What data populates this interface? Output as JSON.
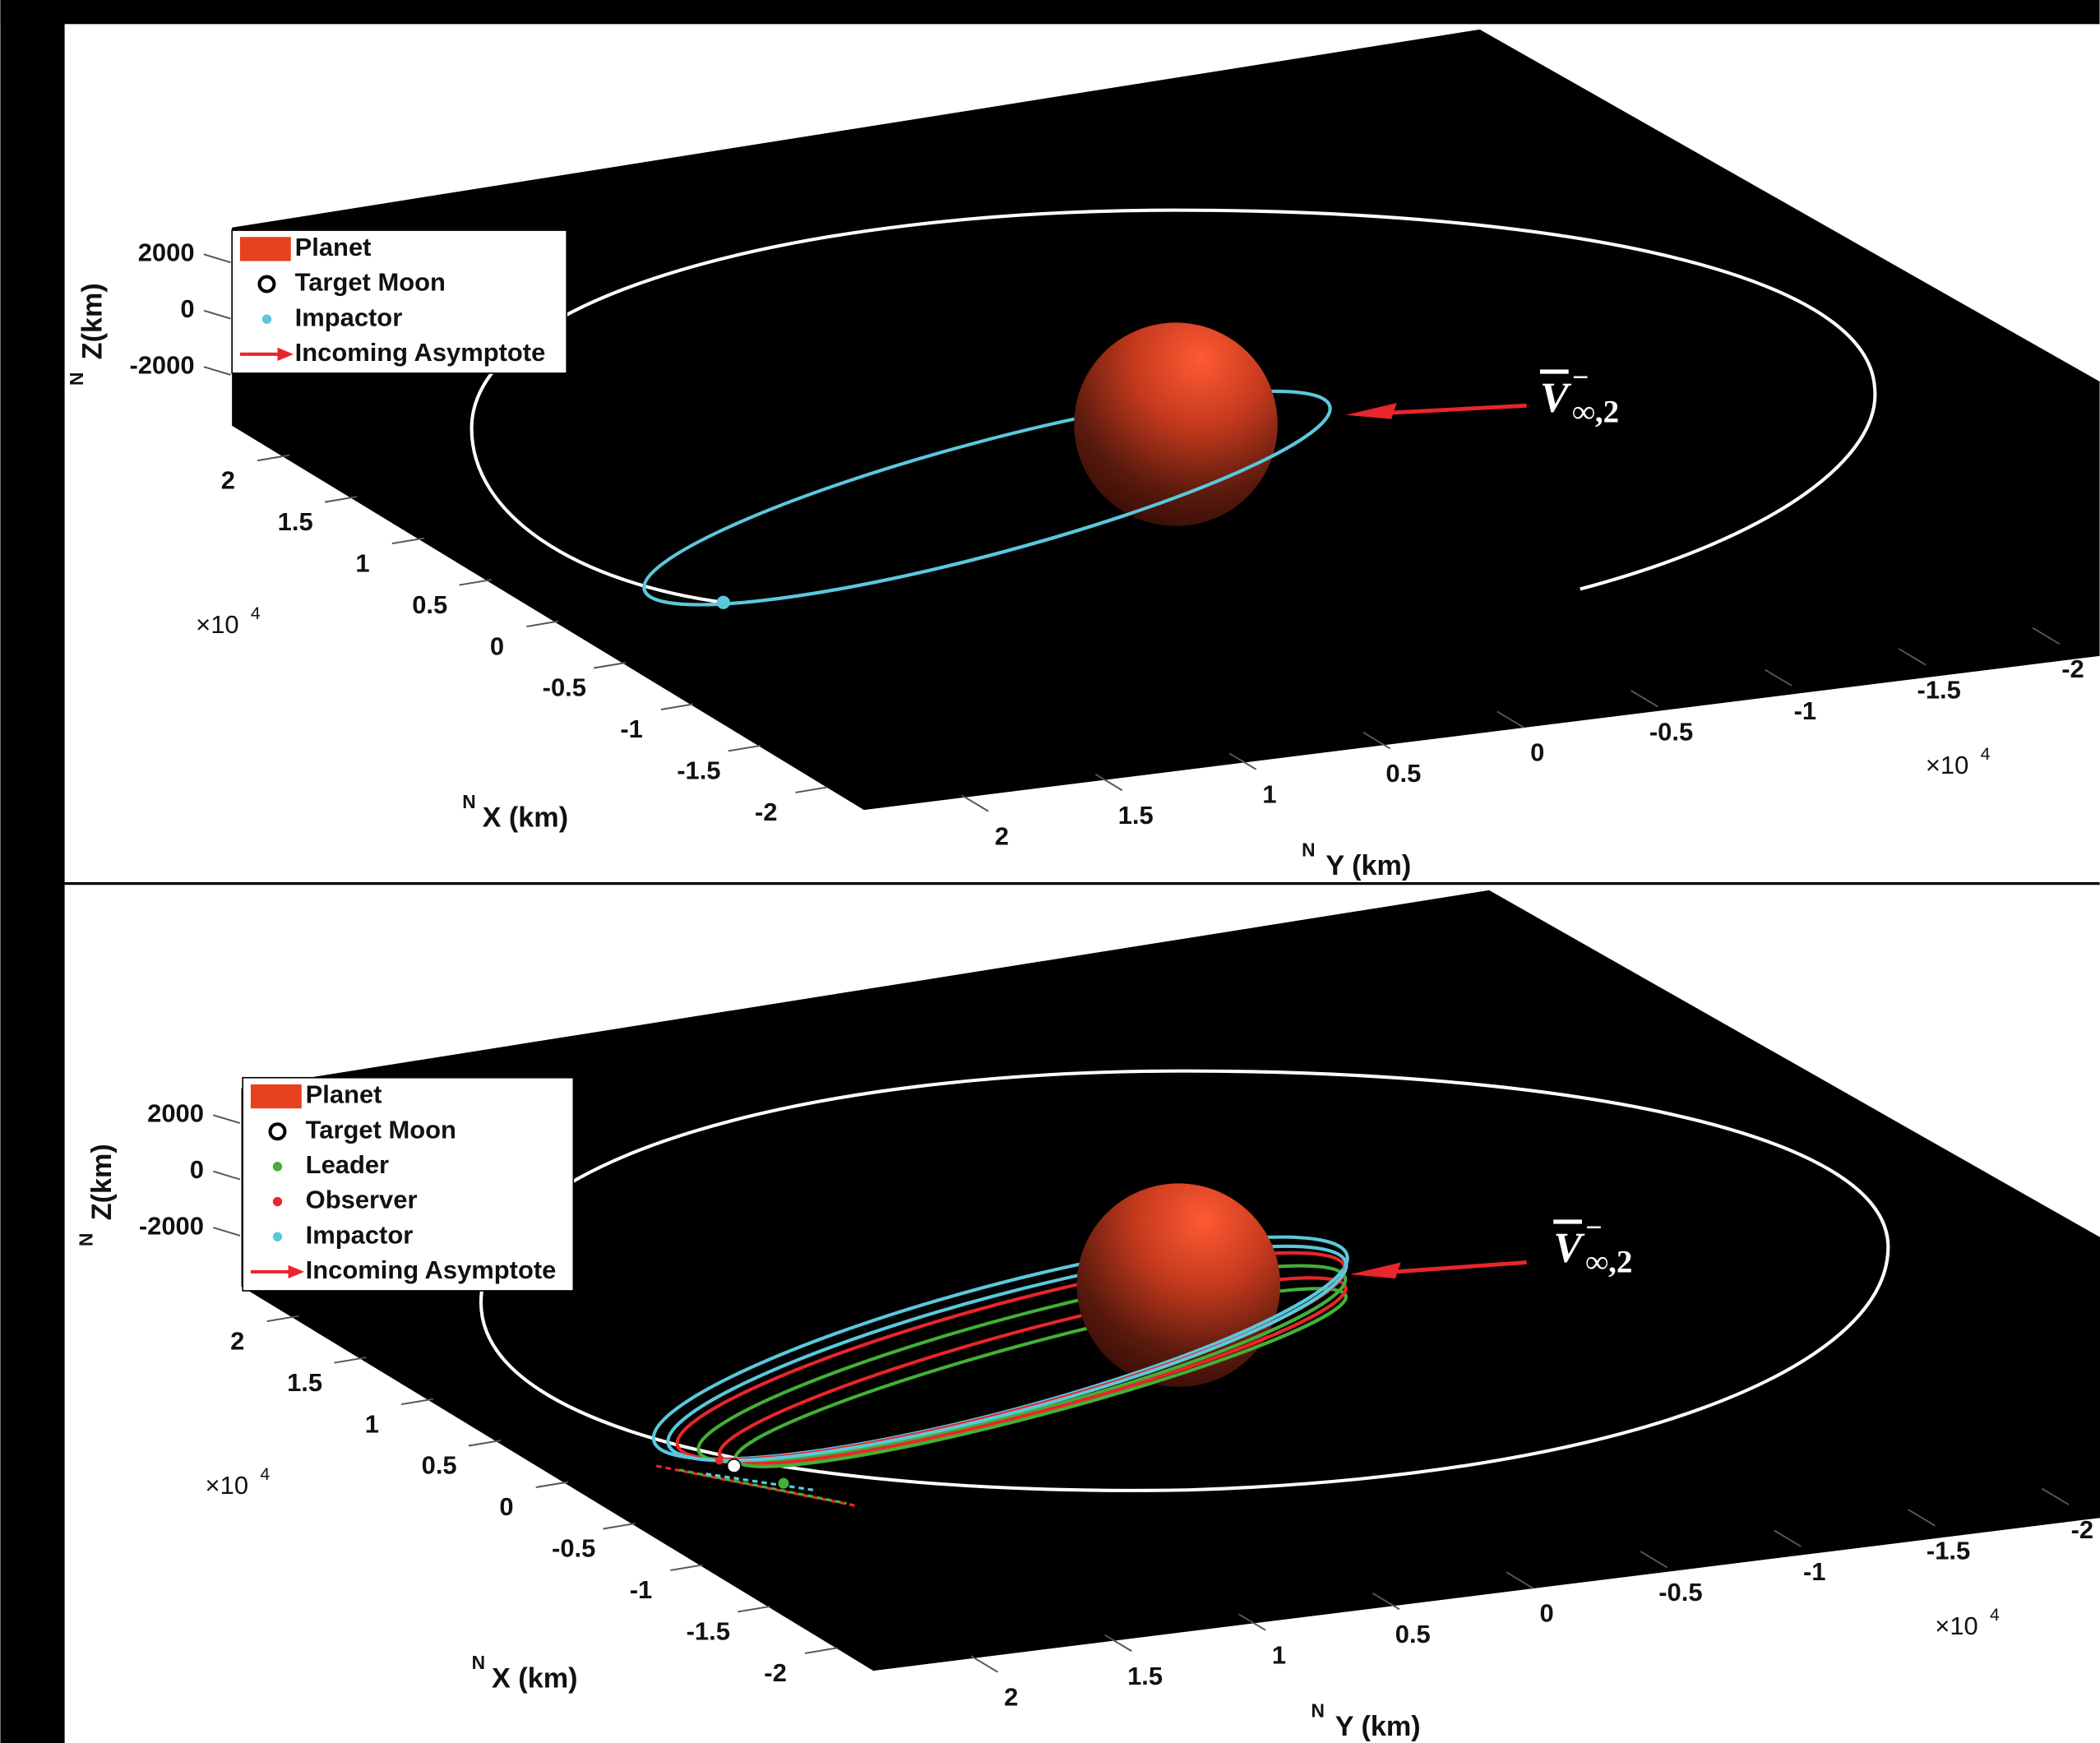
{
  "chart_data": [
    {
      "type": "plot3d",
      "xlabel": "X (km)",
      "xlabel_prefix": "N",
      "ylabel": "Y (km)",
      "ylabel_prefix": "N",
      "zlabel": "Z(km)",
      "zlabel_prefix": "N",
      "xlim": [
        -2.2,
        2.2
      ],
      "xticks": [
        2,
        1.5,
        1,
        0.5,
        0,
        -0.5,
        -1,
        -1.5,
        -2
      ],
      "ylim": [
        -2.2,
        2.2
      ],
      "yticks": [
        2,
        1.5,
        1,
        0.5,
        0,
        -0.5,
        -1,
        -1.5,
        -2
      ],
      "zlim": [
        -2500,
        2500
      ],
      "zticks": [
        2000,
        0,
        -2000
      ],
      "x_multiplier": {
        "label": "×10",
        "exponent": 4
      },
      "y_multiplier": {
        "label": "×10",
        "exponent": 4
      },
      "series": [
        {
          "name": "Planet",
          "color": "#e8411f",
          "marker": "patch"
        },
        {
          "name": "Target Moon",
          "color": "#ffffff",
          "marker": "circle"
        },
        {
          "name": "Impactor",
          "color": "#5bc8dc",
          "marker": "dot"
        },
        {
          "name": "Incoming Asymptote",
          "color": "#e8262b",
          "marker": "arrow"
        }
      ],
      "annotation": {
        "text": "V",
        "sup": "−",
        "sub": "∞,2"
      }
    },
    {
      "type": "plot3d",
      "xlabel": "X (km)",
      "xlabel_prefix": "N",
      "ylabel": "Y (km)",
      "ylabel_prefix": "N",
      "zlabel": "Z(km)",
      "zlabel_prefix": "N",
      "xlim": [
        -2.2,
        2.2
      ],
      "xticks": [
        2,
        1.5,
        1,
        0.5,
        0,
        -0.5,
        -1,
        -1.5,
        -2
      ],
      "ylim": [
        -2.2,
        2.2
      ],
      "yticks": [
        2,
        1.5,
        1,
        0.5,
        0,
        -0.5,
        -1,
        -1.5,
        -2
      ],
      "zlim": [
        -2500,
        2500
      ],
      "zticks": [
        2000,
        0,
        -2000
      ],
      "x_multiplier": {
        "label": "×10",
        "exponent": 4
      },
      "y_multiplier": {
        "label": "×10",
        "exponent": 4
      },
      "series": [
        {
          "name": "Planet",
          "color": "#e8411f",
          "marker": "patch"
        },
        {
          "name": "Target Moon",
          "color": "#ffffff",
          "marker": "circle"
        },
        {
          "name": "Leader",
          "color": "#44b035",
          "marker": "dot"
        },
        {
          "name": "Observer",
          "color": "#e8262b",
          "marker": "dot"
        },
        {
          "name": "Impactor",
          "color": "#5bc8dc",
          "marker": "dot"
        },
        {
          "name": "Incoming Asymptote",
          "color": "#e8262b",
          "marker": "arrow"
        }
      ],
      "annotation": {
        "text": "V",
        "sup": "−",
        "sub": "∞,2"
      }
    }
  ]
}
